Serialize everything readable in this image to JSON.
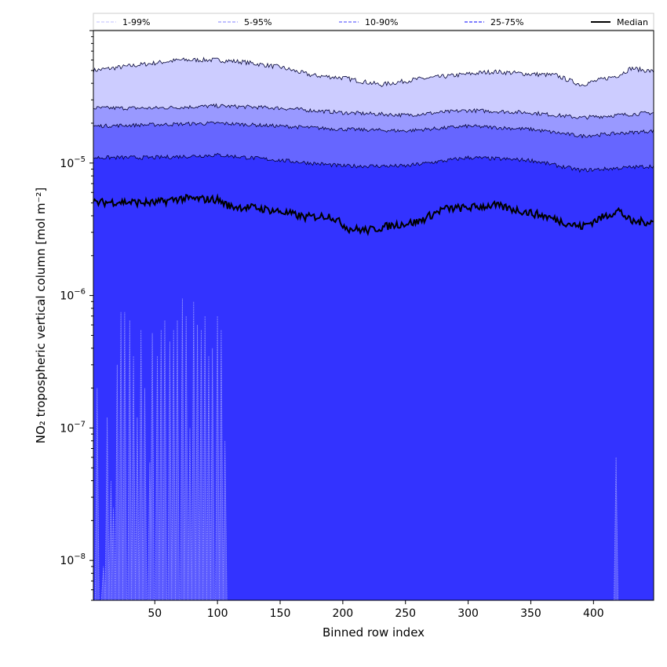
{
  "chart_data": {
    "type": "area",
    "xlabel": "Binned row index",
    "ylabel": "NO₂ tropospheric vertical column [mol m⁻²]",
    "y_scale": "log",
    "xlim": [
      1,
      448
    ],
    "ylim": [
      5e-09,
      0.0001
    ],
    "x_ticks": [
      50,
      100,
      150,
      200,
      250,
      300,
      350,
      400
    ],
    "x_tick_labels": [
      "50",
      "100",
      "150",
      "200",
      "250",
      "300",
      "350",
      "400"
    ],
    "y_ticks": [
      {
        "value": 1e-08,
        "base": "10",
        "exp": "−8"
      },
      {
        "value": 1e-07,
        "base": "10",
        "exp": "−7"
      },
      {
        "value": 1e-06,
        "base": "10",
        "exp": "−6"
      },
      {
        "value": 1e-05,
        "base": "10",
        "exp": "−5"
      }
    ],
    "grid": false,
    "legend_position": "top",
    "legend": [
      {
        "label": "1-99%",
        "color": "#ccccff",
        "style": "band"
      },
      {
        "label": "5-95%",
        "color": "#9999ff",
        "style": "band"
      },
      {
        "label": "10-90%",
        "color": "#6666ff",
        "style": "band"
      },
      {
        "label": "25-75%",
        "color": "#3333ff",
        "style": "band"
      },
      {
        "label": "Median",
        "color": "#000000",
        "style": "line"
      }
    ],
    "bands": [
      {
        "name": "1-99%",
        "color": "#ccccff",
        "upper": [
          [
            1,
            5e-05
          ],
          [
            30,
            5.4e-05
          ],
          [
            70,
            6e-05
          ],
          [
            100,
            6e-05
          ],
          [
            120,
            5.8e-05
          ],
          [
            150,
            5.3e-05
          ],
          [
            175,
            4.6e-05
          ],
          [
            200,
            4.4e-05
          ],
          [
            230,
            3.9e-05
          ],
          [
            260,
            4.3e-05
          ],
          [
            300,
            4.7e-05
          ],
          [
            320,
            4.9e-05
          ],
          [
            350,
            4.7e-05
          ],
          [
            370,
            4.6e-05
          ],
          [
            390,
            3.9e-05
          ],
          [
            420,
            4.6e-05
          ],
          [
            430,
            5.2e-05
          ],
          [
            448,
            4.9e-05
          ]
        ],
        "lower": [
          [
            1,
            5e-09
          ],
          [
            448,
            5e-09
          ]
        ]
      },
      {
        "name": "5-95%",
        "color": "#9999ff",
        "upper": [
          [
            1,
            2.6e-05
          ],
          [
            50,
            2.6e-05
          ],
          [
            100,
            2.7e-05
          ],
          [
            150,
            2.6e-05
          ],
          [
            200,
            2.4e-05
          ],
          [
            250,
            2.3e-05
          ],
          [
            300,
            2.5e-05
          ],
          [
            350,
            2.4e-05
          ],
          [
            390,
            2.2e-05
          ],
          [
            448,
            2.4e-05
          ]
        ],
        "lower": [
          [
            1,
            5e-09
          ],
          [
            448,
            5e-09
          ]
        ]
      },
      {
        "name": "10-90%",
        "color": "#6666ff",
        "upper": [
          [
            1,
            1.9e-05
          ],
          [
            50,
            1.95e-05
          ],
          [
            100,
            2e-05
          ],
          [
            150,
            1.9e-05
          ],
          [
            200,
            1.8e-05
          ],
          [
            250,
            1.75e-05
          ],
          [
            300,
            1.9e-05
          ],
          [
            350,
            1.8e-05
          ],
          [
            390,
            1.6e-05
          ],
          [
            448,
            1.75e-05
          ]
        ],
        "lower": [
          [
            1,
            5e-09
          ],
          [
            448,
            5e-09
          ]
        ]
      },
      {
        "name": "25-75%",
        "color": "#3333ff",
        "upper": [
          [
            1,
            1.1e-05
          ],
          [
            50,
            1.1e-05
          ],
          [
            100,
            1.15e-05
          ],
          [
            150,
            1.05e-05
          ],
          [
            200,
            9.5e-06
          ],
          [
            250,
            9.5e-06
          ],
          [
            300,
            1.1e-05
          ],
          [
            350,
            1.05e-05
          ],
          [
            390,
            8.8e-06
          ],
          [
            448,
            9.5e-06
          ]
        ],
        "lower": [
          [
            1,
            5e-09
          ],
          [
            448,
            5e-09
          ]
        ]
      }
    ],
    "median": [
      [
        1,
        5e-06
      ],
      [
        20,
        5.1e-06
      ],
      [
        50,
        5e-06
      ],
      [
        70,
        5.4e-06
      ],
      [
        100,
        5.3e-06
      ],
      [
        110,
        4.7e-06
      ],
      [
        130,
        4.6e-06
      ],
      [
        150,
        4.3e-06
      ],
      [
        170,
        3.9e-06
      ],
      [
        190,
        4e-06
      ],
      [
        205,
        3.2e-06
      ],
      [
        220,
        3.1e-06
      ],
      [
        240,
        3.4e-06
      ],
      [
        260,
        3.6e-06
      ],
      [
        280,
        4.5e-06
      ],
      [
        300,
        4.6e-06
      ],
      [
        320,
        4.8e-06
      ],
      [
        340,
        4.4e-06
      ],
      [
        360,
        4e-06
      ],
      [
        380,
        3.5e-06
      ],
      [
        390,
        3.3e-06
      ],
      [
        410,
        4e-06
      ],
      [
        420,
        4.4e-06
      ],
      [
        430,
        3.6e-06
      ],
      [
        448,
        3.6e-06
      ]
    ],
    "lower_spikes": [
      {
        "x": 4,
        "y": 2e-07
      },
      {
        "x": 9,
        "y": 9e-09
      },
      {
        "x": 12,
        "y": 1.2e-07
      },
      {
        "x": 15,
        "y": 4e-08
      },
      {
        "x": 17,
        "y": 2.5e-08
      },
      {
        "x": 20,
        "y": 3e-07
      },
      {
        "x": 23,
        "y": 7.5e-07
      },
      {
        "x": 26,
        "y": 7.5e-07
      },
      {
        "x": 30,
        "y": 6.5e-07
      },
      {
        "x": 33,
        "y": 3.5e-07
      },
      {
        "x": 36,
        "y": 1.2e-07
      },
      {
        "x": 39,
        "y": 5.5e-07
      },
      {
        "x": 42,
        "y": 2e-07
      },
      {
        "x": 46,
        "y": 5.5e-08
      },
      {
        "x": 48,
        "y": 5.2e-07
      },
      {
        "x": 52,
        "y": 3.5e-07
      },
      {
        "x": 55,
        "y": 5.5e-07
      },
      {
        "x": 58,
        "y": 6.5e-07
      },
      {
        "x": 62,
        "y": 4.5e-07
      },
      {
        "x": 65,
        "y": 5.5e-07
      },
      {
        "x": 68,
        "y": 6.5e-07
      },
      {
        "x": 72,
        "y": 9.5e-07
      },
      {
        "x": 75,
        "y": 7e-07
      },
      {
        "x": 78,
        "y": 1e-07
      },
      {
        "x": 81,
        "y": 9e-07
      },
      {
        "x": 84,
        "y": 6e-07
      },
      {
        "x": 87,
        "y": 5.5e-07
      },
      {
        "x": 90,
        "y": 7e-07
      },
      {
        "x": 93,
        "y": 3.5e-07
      },
      {
        "x": 96,
        "y": 4e-07
      },
      {
        "x": 100,
        "y": 7e-07
      },
      {
        "x": 103,
        "y": 5.5e-07
      },
      {
        "x": 106,
        "y": 8e-08
      },
      {
        "x": 418,
        "y": 6e-08
      }
    ]
  }
}
